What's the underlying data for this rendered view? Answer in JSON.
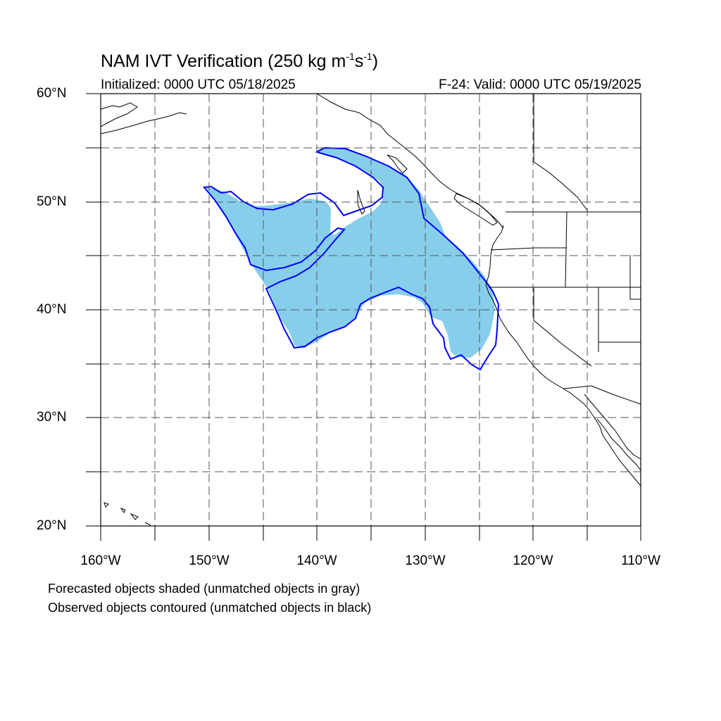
{
  "title": {
    "main": "NAM IVT Verification (250 kg m",
    "sup1": "-1",
    "mid": "s",
    "sup2": "-1",
    "end": ")"
  },
  "init_text": "Initialized: 0000 UTC 05/18/2025",
  "valid_text": "F-24: Valid: 0000 UTC 05/19/2025",
  "lat_labels": [
    "60°N",
    "50°N",
    "40°N",
    "30°N",
    "20°N"
  ],
  "lon_labels": [
    "160°W",
    "150°W",
    "140°W",
    "130°W",
    "120°W",
    "110°W"
  ],
  "notes": [
    "Forecasted objects shaded (unmatched objects in gray)",
    "Observed objects contoured (unmatched objects in black)"
  ],
  "colors": {
    "forecast_fill": "#87ceeb",
    "observed_contour": "#0000ff",
    "coastline": "#000000",
    "grid": "#555555"
  },
  "map_extent": {
    "lon_min": -160,
    "lon_max": -110,
    "lat_min": 20,
    "lat_max": 60
  }
}
